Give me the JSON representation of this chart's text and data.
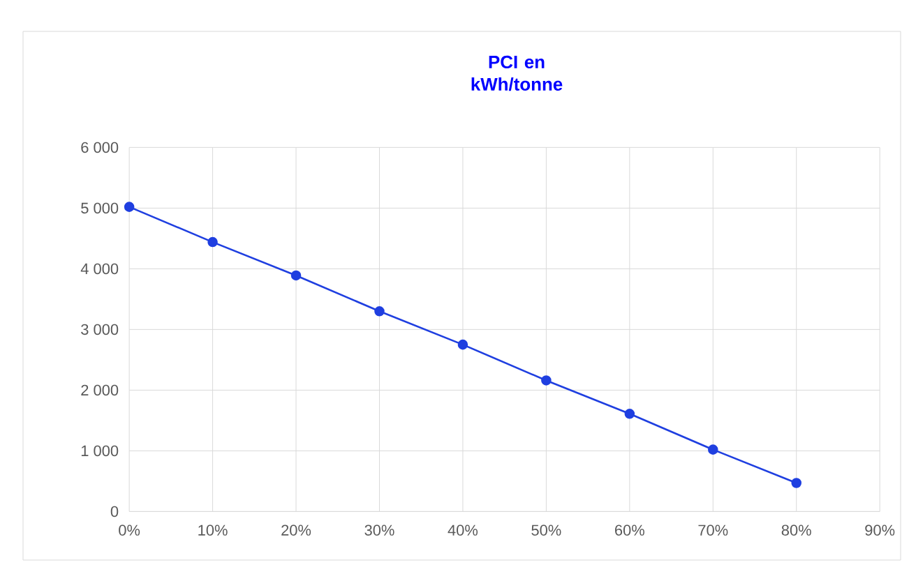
{
  "chart_data": {
    "type": "line",
    "title": "PCI en kWh/tonne",
    "x": [
      0,
      10,
      20,
      30,
      40,
      50,
      60,
      70,
      80
    ],
    "series": [
      {
        "color": "#1f3fe0",
        "values": [
          5020,
          4440,
          3890,
          3300,
          2750,
          2160,
          1610,
          1020,
          470
        ]
      }
    ],
    "xlim": [
      0,
      90
    ],
    "xticks": [
      {
        "value": 0,
        "label": "0%"
      },
      {
        "value": 10,
        "label": "10%"
      },
      {
        "value": 20,
        "label": "20%"
      },
      {
        "value": 30,
        "label": "30%"
      },
      {
        "value": 40,
        "label": "40%"
      },
      {
        "value": 50,
        "label": "50%"
      },
      {
        "value": 60,
        "label": "60%"
      },
      {
        "value": 70,
        "label": "70%"
      },
      {
        "value": 80,
        "label": "80%"
      },
      {
        "value": 90,
        "label": "90%"
      }
    ],
    "ylim": [
      0,
      6000
    ],
    "yticks": [
      0,
      {
        "value": 1000,
        "label": "1 000"
      },
      {
        "value": 2000,
        "label": "2 000"
      },
      {
        "value": 3000,
        "label": "3 000"
      },
      {
        "value": 4000,
        "label": "4 000"
      },
      {
        "value": 5000,
        "label": "5 000"
      },
      {
        "value": 6000,
        "label": "6 000"
      }
    ],
    "grid": true,
    "marker": "circle",
    "line_style": "solid"
  }
}
